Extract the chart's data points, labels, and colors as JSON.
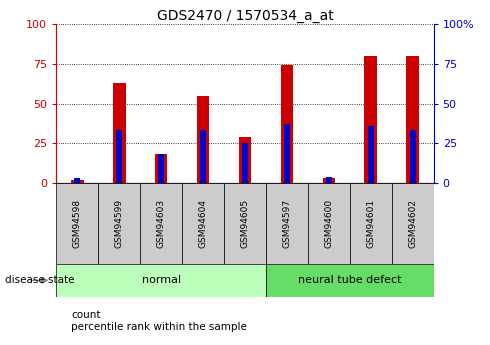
{
  "title": "GDS2470 / 1570534_a_at",
  "samples": [
    "GSM94598",
    "GSM94599",
    "GSM94603",
    "GSM94604",
    "GSM94605",
    "GSM94597",
    "GSM94600",
    "GSM94601",
    "GSM94602"
  ],
  "count_values": [
    2,
    63,
    18,
    55,
    29,
    74,
    3,
    80,
    80
  ],
  "percentile_values": [
    3,
    33,
    18,
    33,
    25,
    37,
    4,
    36,
    33
  ],
  "groups": [
    {
      "label": "normal",
      "start": 0,
      "end": 5,
      "color": "#bbffbb"
    },
    {
      "label": "neural tube defect",
      "start": 5,
      "end": 9,
      "color": "#66dd66"
    }
  ],
  "bar_width": 0.3,
  "red_color": "#cc0000",
  "blue_color": "#0000cc",
  "ylim": [
    0,
    100
  ],
  "yticks": [
    0,
    25,
    50,
    75,
    100
  ],
  "bg_color": "#ffffff",
  "tick_label_color_left": "#cc0000",
  "tick_label_color_right": "#0000cc",
  "title_fontsize": 10,
  "legend_label_count": "count",
  "legend_label_percentile": "percentile rank within the sample",
  "disease_state_label": "disease state",
  "xlabels_bg": "#cccccc"
}
